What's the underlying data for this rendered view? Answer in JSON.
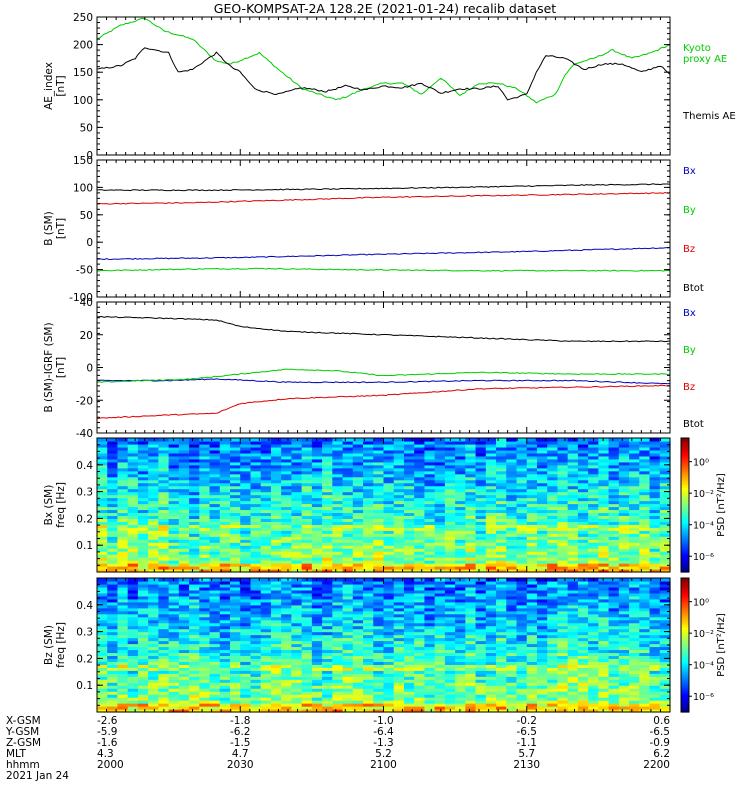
{
  "title": "GEO-KOMPSAT-2A 128.2E (2021-01-24) recalib dataset",
  "colors": {
    "black": "#000000",
    "red": "#dd0000",
    "green": "#00cc00",
    "blue": "#0000bb"
  },
  "ephemeris": {
    "rows": [
      "X-GSM",
      "Y-GSM",
      "Z-GSM",
      "MLT",
      "hhmm"
    ],
    "date_label": "2021 Jan 24",
    "columns": [
      [
        "-2.6",
        "-5.9",
        "-1.6",
        "4.3",
        "2000"
      ],
      [
        "-1.8",
        "-6.2",
        "-1.5",
        "4.7",
        "2030"
      ],
      [
        "-1.0",
        "-6.4",
        "-1.3",
        "5.2",
        "2100"
      ],
      [
        "-0.2",
        "-6.5",
        "-1.1",
        "5.7",
        "2130"
      ],
      [
        "0.6",
        "-6.5",
        "-0.9",
        "6.2",
        "2200"
      ]
    ]
  },
  "chart_data": [
    {
      "type": "line",
      "ylabel": "AE_index\n[nT]",
      "ylim": [
        0,
        250
      ],
      "yticks": [
        "0",
        "50",
        "100",
        "150",
        "200",
        "250"
      ],
      "xlim": [
        0,
        120
      ],
      "x_unit": "minutes after 2000 UT",
      "series": [
        {
          "name": "Kyoto\nproxy AE",
          "color": "#00cc00",
          "x": [
            0,
            5,
            10,
            14,
            20,
            25,
            28,
            34,
            38,
            43,
            50,
            52,
            56,
            60,
            64,
            68,
            72,
            76,
            80,
            84,
            88,
            92,
            96,
            98,
            100,
            104,
            108,
            112,
            116,
            120
          ],
          "y": [
            210,
            235,
            248,
            225,
            210,
            170,
            165,
            185,
            155,
            120,
            100,
            105,
            120,
            130,
            130,
            110,
            140,
            108,
            130,
            130,
            120,
            95,
            110,
            145,
            165,
            175,
            190,
            175,
            185,
            200
          ]
        },
        {
          "name": "Themis AE",
          "color": "#000000",
          "x": [
            0,
            5,
            8,
            10,
            15,
            17,
            20,
            25,
            28,
            30,
            33,
            35,
            38,
            43,
            48,
            52,
            56,
            60,
            64,
            68,
            72,
            76,
            80,
            84,
            86,
            90,
            92,
            94,
            98,
            102,
            106,
            110,
            114,
            118,
            120
          ],
          "y": [
            155,
            162,
            175,
            195,
            185,
            150,
            155,
            185,
            160,
            150,
            120,
            115,
            110,
            122,
            115,
            125,
            118,
            125,
            122,
            130,
            112,
            120,
            120,
            125,
            100,
            110,
            150,
            180,
            175,
            155,
            165,
            165,
            150,
            162,
            145
          ]
        }
      ]
    },
    {
      "type": "line",
      "ylabel": "B (SM)\n[nT]",
      "ylim": [
        -100,
        150
      ],
      "yticks": [
        "-100",
        "-50",
        "0",
        "50",
        "100",
        "150"
      ],
      "xlim": [
        0,
        120
      ],
      "series": [
        {
          "name": "Bx",
          "color": "#0000bb",
          "x": [
            0,
            30,
            60,
            90,
            120
          ],
          "y": [
            -31,
            -28,
            -22,
            -17,
            -10
          ]
        },
        {
          "name": "By",
          "color": "#00cc00",
          "x": [
            0,
            20,
            35,
            50,
            80,
            120
          ],
          "y": [
            -52,
            -49,
            -48,
            -50,
            -52,
            -52
          ]
        },
        {
          "name": "Bz",
          "color": "#dd0000",
          "x": [
            0,
            20,
            40,
            60,
            90,
            120
          ],
          "y": [
            70,
            72,
            77,
            82,
            86,
            90
          ]
        },
        {
          "name": "Btot",
          "color": "#000000",
          "x": [
            0,
            25,
            50,
            75,
            100,
            120
          ],
          "y": [
            95,
            95,
            97,
            100,
            104,
            106
          ]
        }
      ]
    },
    {
      "type": "line",
      "ylabel": "B (SM)-IGRF (SM)\n[nT]",
      "ylim": [
        -40,
        40
      ],
      "yticks": [
        "-40",
        "-20",
        "0",
        "20",
        "40"
      ],
      "xlim": [
        0,
        120
      ],
      "series": [
        {
          "name": "Bx",
          "color": "#0000bb",
          "x": [
            0,
            15,
            25,
            40,
            60,
            80,
            100,
            120
          ],
          "y": [
            -8,
            -8,
            -7,
            -9,
            -9,
            -8,
            -8,
            -10
          ]
        },
        {
          "name": "By",
          "color": "#00cc00",
          "x": [
            0,
            20,
            30,
            40,
            50,
            60,
            80,
            100,
            120
          ],
          "y": [
            -9,
            -7,
            -4,
            -1,
            -2,
            -5,
            -3,
            -4,
            -4
          ]
        },
        {
          "name": "Bz",
          "color": "#dd0000",
          "x": [
            0,
            15,
            25,
            30,
            40,
            60,
            80,
            100,
            120
          ],
          "y": [
            -31,
            -29,
            -28,
            -22,
            -19,
            -17,
            -13,
            -12,
            -11
          ]
        },
        {
          "name": "Btot",
          "color": "#000000",
          "x": [
            0,
            15,
            25,
            30,
            40,
            60,
            80,
            100,
            120
          ],
          "y": [
            31,
            30,
            29,
            25,
            22,
            20,
            18,
            16,
            16
          ]
        }
      ]
    },
    {
      "type": "heatmap",
      "ylabel": "Bx (SM)\nfreq [Hz]",
      "ylim": [
        0,
        0.5
      ],
      "yticks": [
        "0.1",
        "0.2",
        "0.3",
        "0.4"
      ],
      "xlim": [
        0,
        120
      ],
      "colorbar": {
        "label": "PSD [nT²/Hz]",
        "ticks": [
          "10⁰",
          "10⁻²",
          "10⁻⁴",
          "10⁻⁶"
        ],
        "tick_values": [
          0,
          -2,
          -4,
          -6
        ],
        "range": [
          -7,
          1.5
        ]
      }
    },
    {
      "type": "heatmap",
      "ylabel": "Bz (SM)\nfreq [Hz]",
      "ylim": [
        0,
        0.5
      ],
      "yticks": [
        "0.1",
        "0.2",
        "0.3",
        "0.4"
      ],
      "xlim": [
        0,
        120
      ],
      "colorbar": {
        "label": "PSD [nT²/Hz]",
        "ticks": [
          "10⁰",
          "10⁻²",
          "10⁻⁴",
          "10⁻⁶"
        ],
        "tick_values": [
          0,
          -2,
          -4,
          -6
        ],
        "range": [
          -7,
          1.5
        ]
      }
    }
  ]
}
